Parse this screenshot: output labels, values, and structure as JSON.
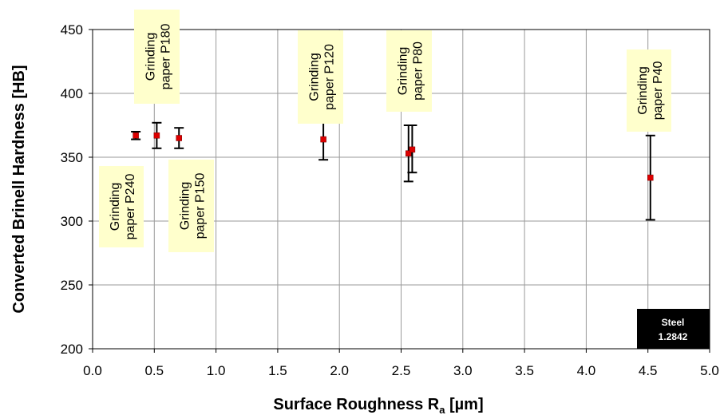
{
  "chart_data": {
    "type": "scatter",
    "xlabel_main": "Surface Roughness R",
    "xlabel_sub": "a",
    "xlabel_unit": " [µm]",
    "ylabel": "Converted Brinell Hardness [HB]",
    "xlim": [
      0.0,
      5.0
    ],
    "ylim": [
      200,
      450
    ],
    "x_ticks": [
      "0.0",
      "0.5",
      "1.0",
      "1.5",
      "2.0",
      "2.5",
      "3.0",
      "3.5",
      "4.0",
      "4.5",
      "5.0"
    ],
    "y_ticks": [
      "200",
      "250",
      "300",
      "350",
      "400",
      "450"
    ],
    "grid": true,
    "marker_color": "#dd0000",
    "label_bg": "#ffffcc",
    "points": [
      {
        "x": 0.35,
        "y": 367,
        "err_low": 364,
        "err_high": 370
      },
      {
        "x": 0.52,
        "y": 367,
        "err_low": 357,
        "err_high": 377
      },
      {
        "x": 0.7,
        "y": 365,
        "err_low": 357,
        "err_high": 373
      },
      {
        "x": 1.87,
        "y": 364,
        "err_low": 348,
        "err_high": 380
      },
      {
        "x": 2.56,
        "y": 353,
        "err_low": 331,
        "err_high": 375
      },
      {
        "x": 2.59,
        "y": 356,
        "err_low": 338,
        "err_high": 375
      },
      {
        "x": 4.52,
        "y": 334,
        "err_low": 301,
        "err_high": 367
      }
    ],
    "annotations": [
      {
        "line1": "Grinding",
        "line2": "paper P240"
      },
      {
        "line1": "Grinding",
        "line2": "paper P180"
      },
      {
        "line1": "Grinding",
        "line2": "paper P150"
      },
      {
        "line1": "Grinding",
        "line2": "paper P120"
      },
      {
        "line1": "Grinding",
        "line2": "paper P80"
      },
      {
        "line1": "Grinding",
        "line2": "paper P40"
      }
    ],
    "material_badge": {
      "line1": "Steel",
      "line2": "1.2842"
    }
  }
}
